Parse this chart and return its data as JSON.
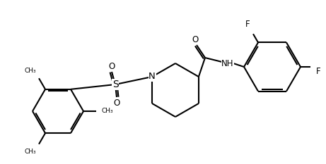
{
  "bg": "#ffffff",
  "lc": "#000000",
  "lw": 1.5,
  "fs": 8.5,
  "meth_labels": [
    "CH₃",
    "CH₃",
    "CH₃"
  ],
  "F_label": "F",
  "S_label": "S",
  "N_label": "N",
  "NH_label": "NH",
  "O_label": "O"
}
